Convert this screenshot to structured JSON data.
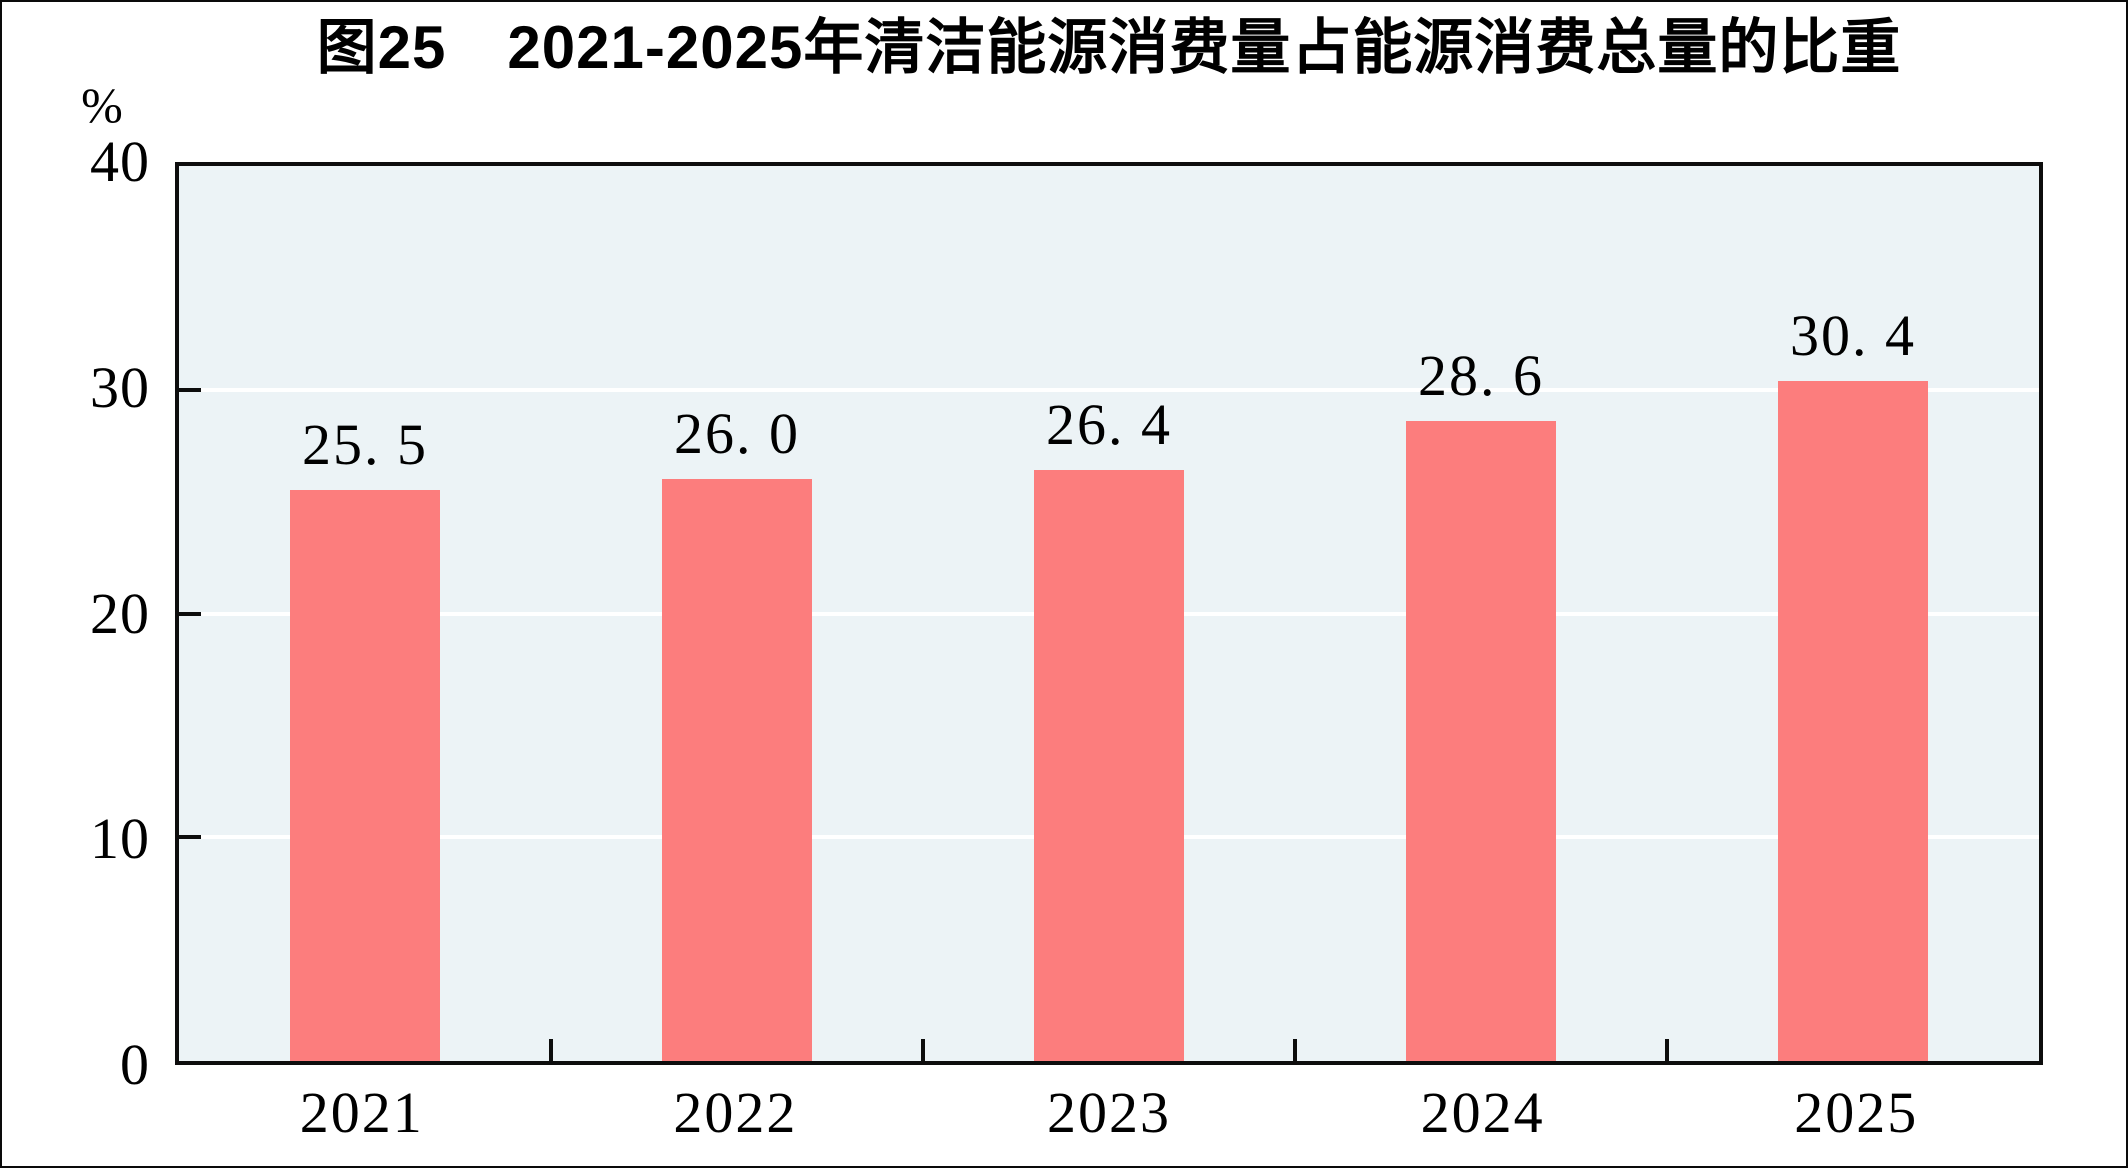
{
  "chart_data": {
    "type": "bar",
    "title": "图25　2021-2025年清洁能源消费量占能源消费总量的比重",
    "unit_label": "%",
    "categories": [
      "2021",
      "2022",
      "2023",
      "2024",
      "2025"
    ],
    "values": [
      25.5,
      26.0,
      26.4,
      28.6,
      30.4
    ],
    "value_labels": [
      "25. 5",
      "26. 0",
      "26. 4",
      "28. 6",
      "30. 4"
    ],
    "ylim": [
      0,
      40
    ],
    "yticks": [
      0,
      10,
      20,
      30,
      40
    ],
    "ytick_labels": [
      "0",
      "10",
      "20",
      "30",
      "40"
    ],
    "grid": true,
    "legend_position": "none",
    "colors": {
      "bar": "#FC7D7D",
      "plot_background": "#ECF3F6",
      "gridline": "#FFFFFF",
      "axis": "#0D0D0D",
      "text": "#000000"
    }
  }
}
